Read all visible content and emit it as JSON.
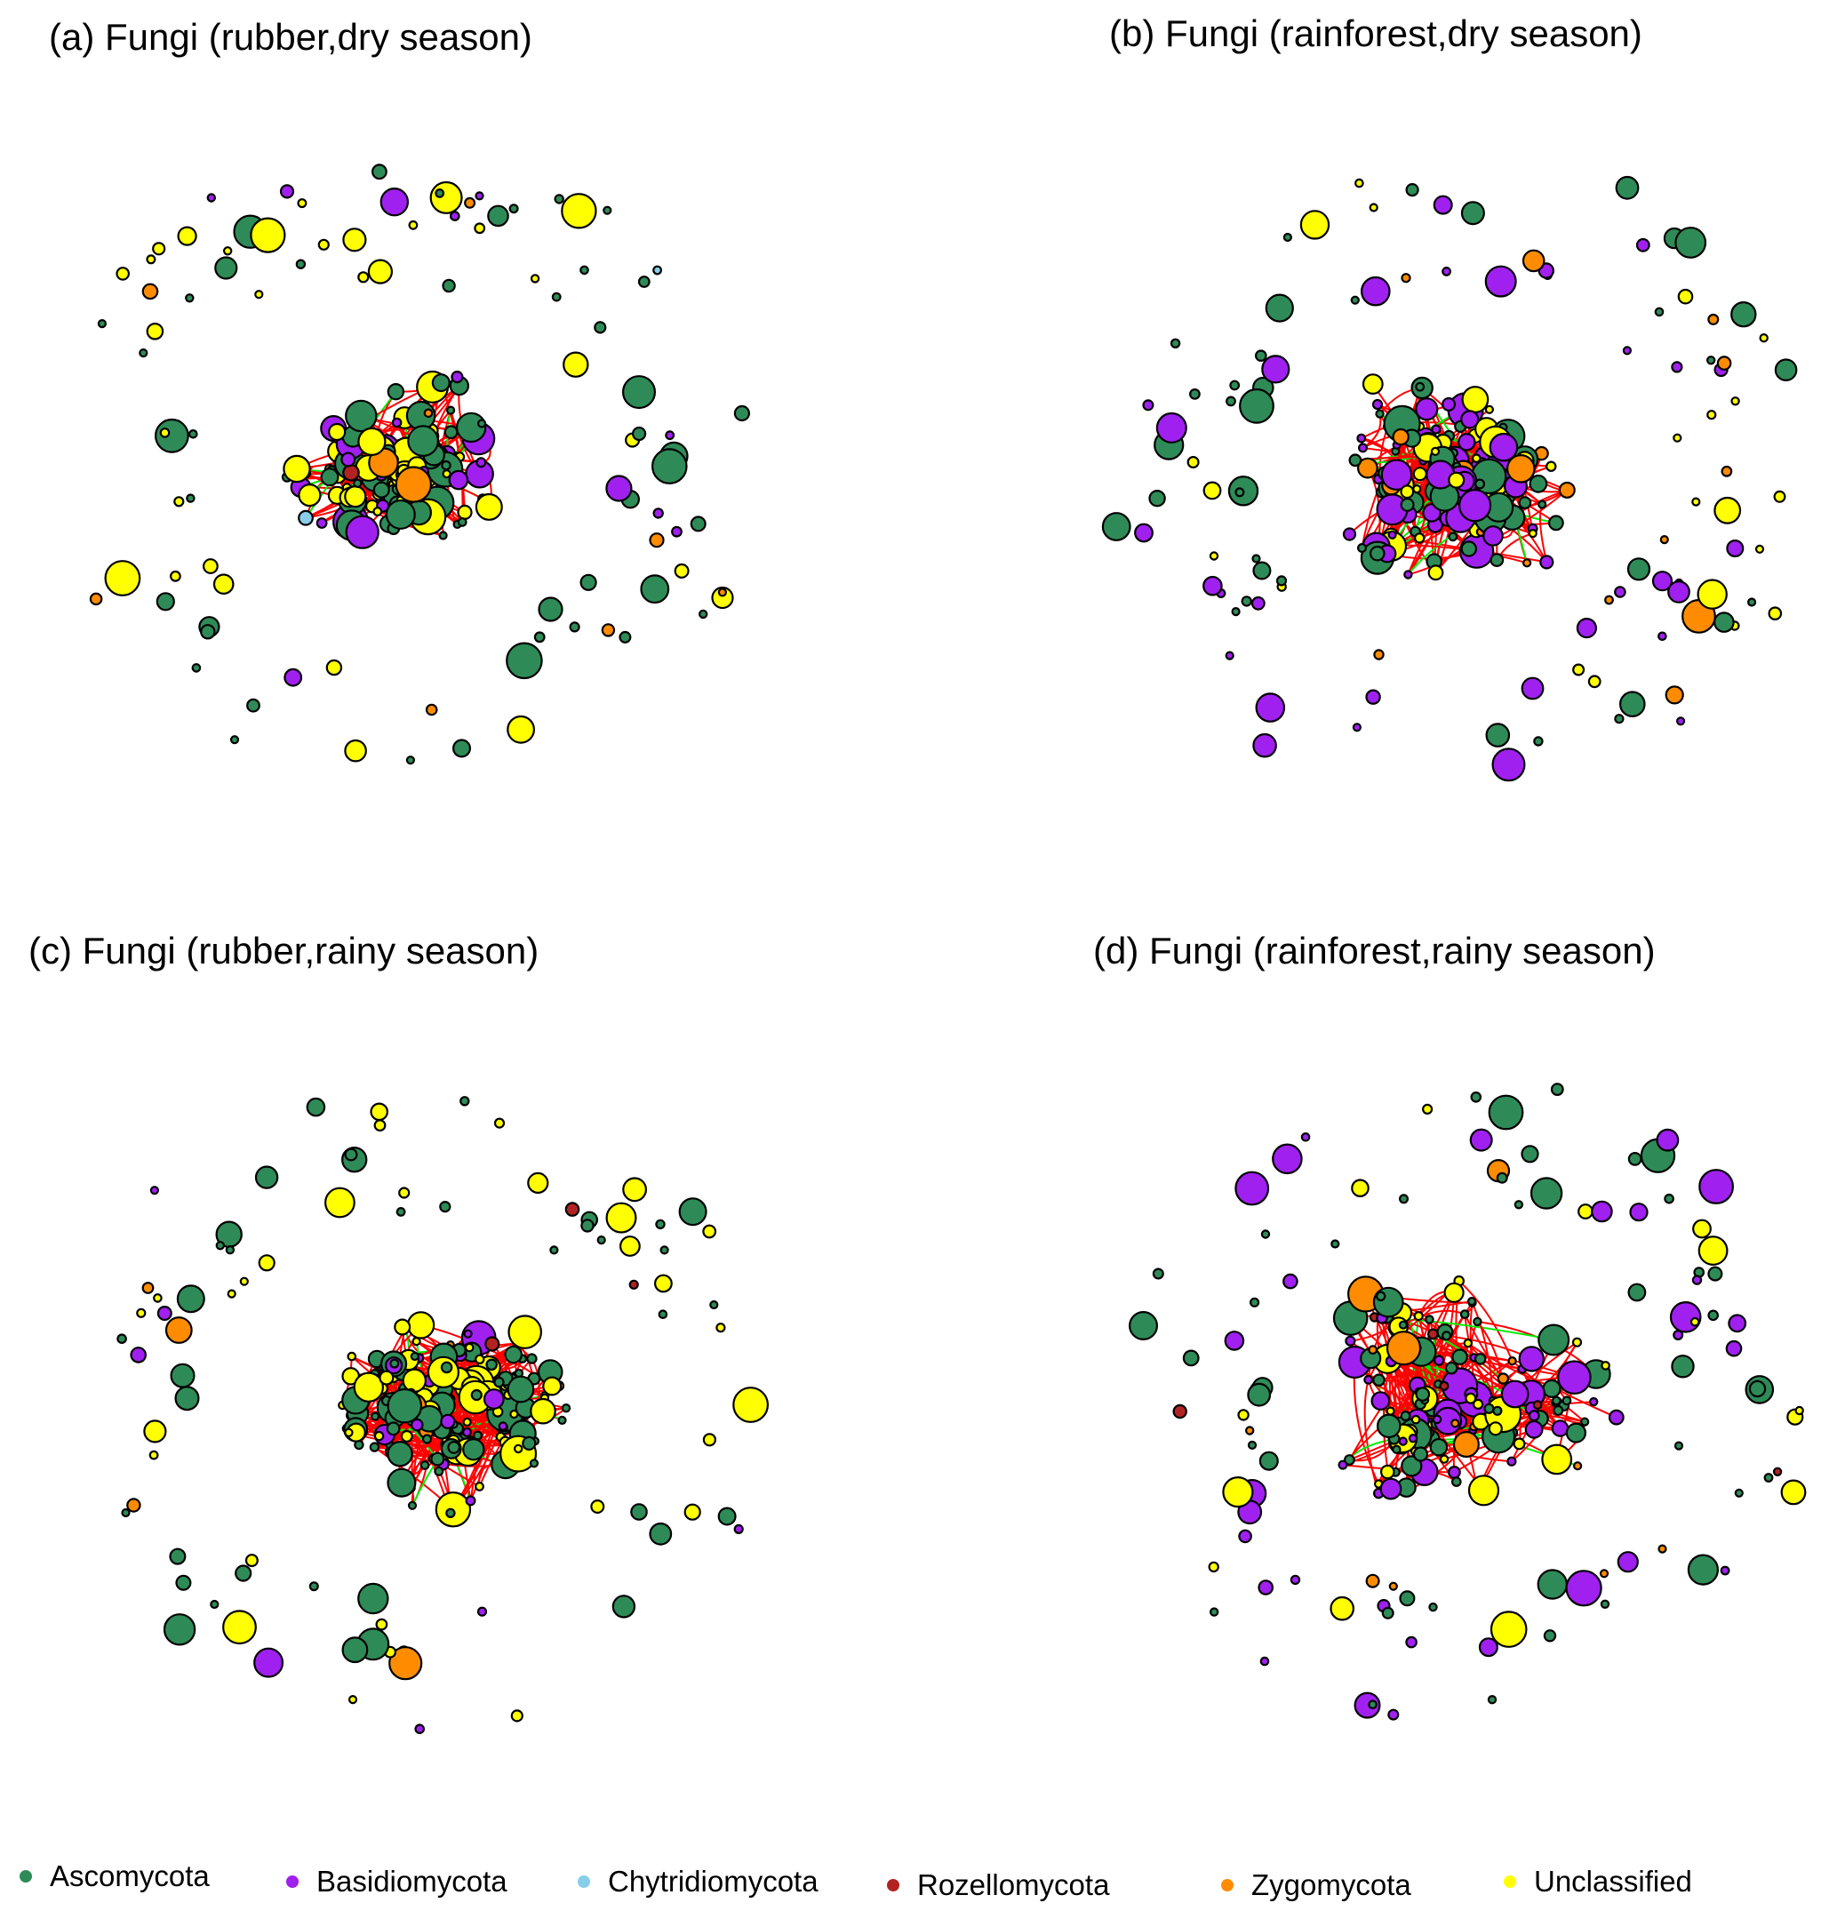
{
  "panels": [
    {
      "id": "a",
      "title": "(a) Fungi (rubber,dry season)"
    },
    {
      "id": "b",
      "title": "(b) Fungi (rainforest,dry season)"
    },
    {
      "id": "c",
      "title": "(c) Fungi (rubber,rainy season)"
    },
    {
      "id": "d",
      "title": "(d) Fungi (rainforest,rainy season)"
    }
  ],
  "legend": [
    {
      "label": "Ascomycota",
      "color": "#2e8b57"
    },
    {
      "label": "Basidiomycota",
      "color": "#a020f0"
    },
    {
      "label": "Chytridiomycota",
      "color": "#87ceeb"
    },
    {
      "label": "Rozellomycota",
      "color": "#b22222"
    },
    {
      "label": "Zygomycota",
      "color": "#ff8c00"
    },
    {
      "label": "Unclassified",
      "color": "#ffff00"
    }
  ],
  "edge_colors": {
    "positive": "#ff0000",
    "negative": "#00ee00"
  }
}
